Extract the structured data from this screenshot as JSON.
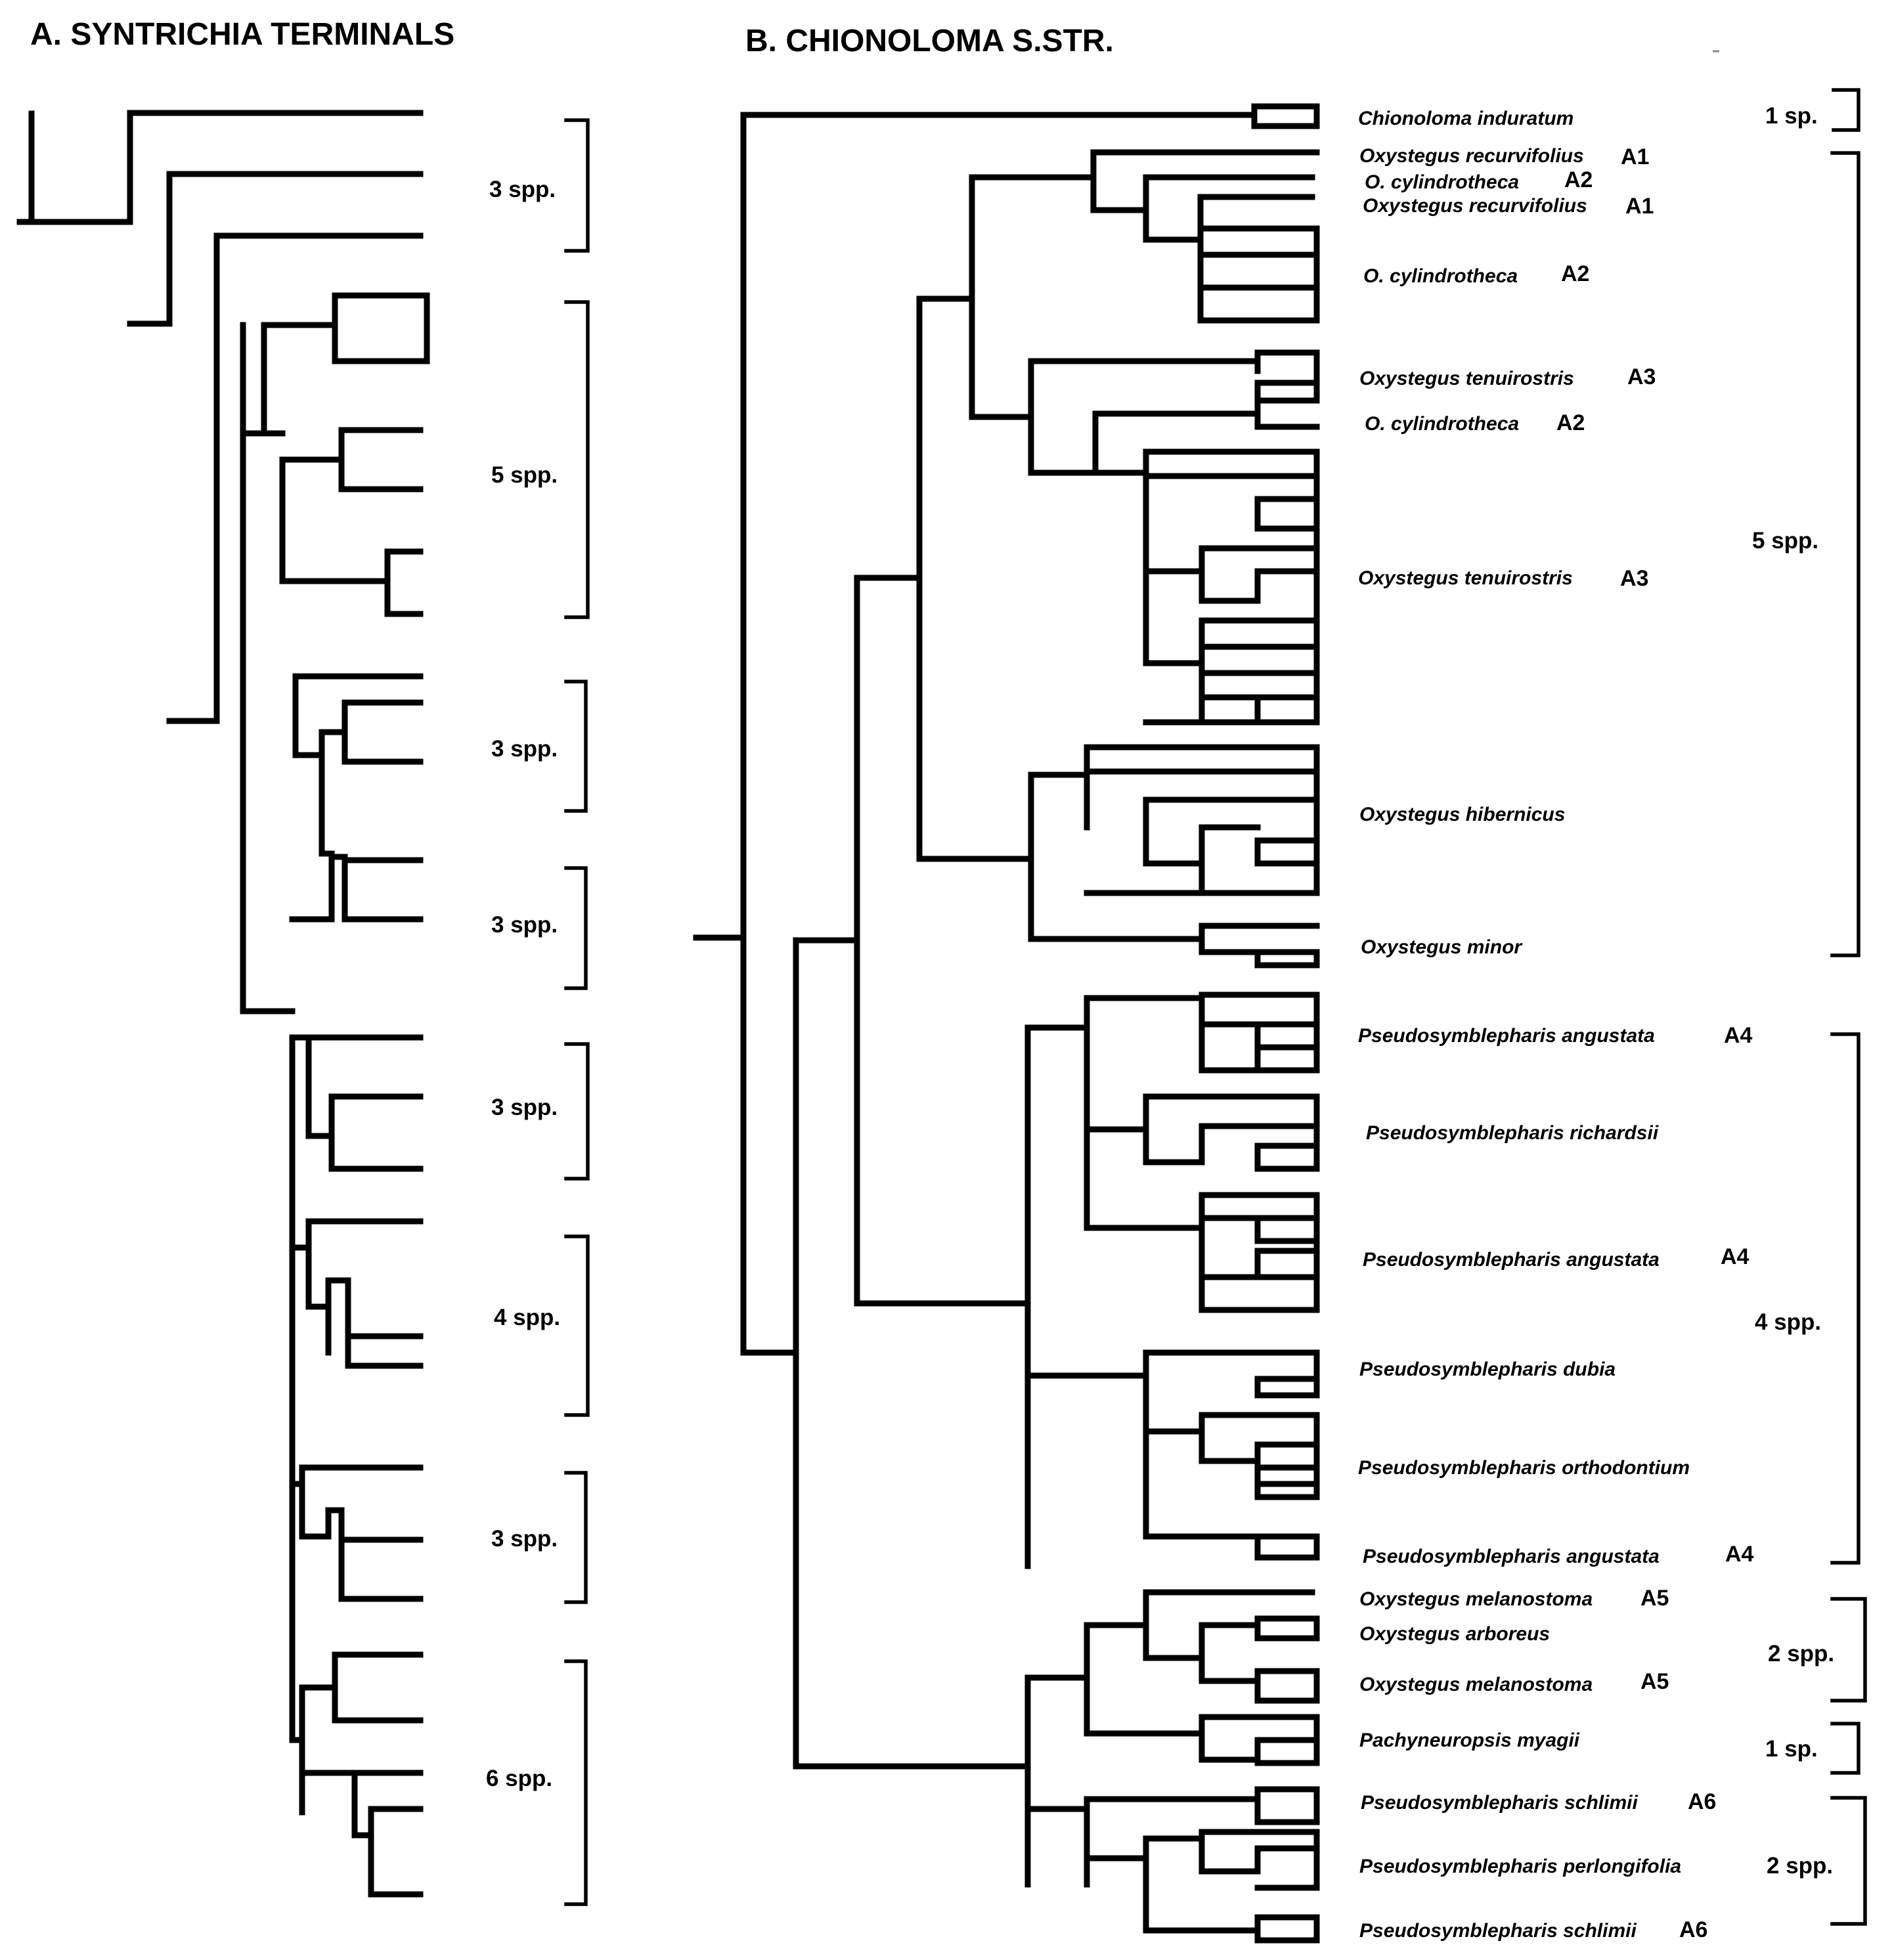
{
  "panel_a": {
    "title": "A. SYNTRICHIA TERMINALS",
    "groups": [
      "3 spp.",
      "5 spp.",
      "3 spp.",
      "3 spp.",
      "3 spp.",
      "4 spp.",
      "3 spp.",
      "6 spp."
    ]
  },
  "panel_b": {
    "title": "B. CHIONOLOMA S.STR.",
    "taxa": [
      {
        "name": "Chionoloma induratum",
        "code": ""
      },
      {
        "name": "Oxystegus recurvifolius",
        "code": "A1"
      },
      {
        "name": "O. cylindrotheca",
        "code": "A2"
      },
      {
        "name": "Oxystegus recurvifolius",
        "code": "A1"
      },
      {
        "name": "O. cylindrotheca",
        "code": "A2"
      },
      {
        "name": "Oxystegus tenuirostris",
        "code": "A3"
      },
      {
        "name": "O. cylindrotheca",
        "code": "A2"
      },
      {
        "name": "Oxystegus tenuirostris",
        "code": "A3"
      },
      {
        "name": "Oxystegus hibernicus",
        "code": ""
      },
      {
        "name": "Oxystegus minor",
        "code": ""
      },
      {
        "name": "Pseudosymblepharis angustata",
        "code": "A4"
      },
      {
        "name": "Pseudosymblepharis richardsii",
        "code": ""
      },
      {
        "name": "Pseudosymblepharis angustata",
        "code": "A4"
      },
      {
        "name": "Pseudosymblepharis dubia",
        "code": ""
      },
      {
        "name": "Pseudosymblepharis orthodontium",
        "code": ""
      },
      {
        "name": "Pseudosymblepharis angustata",
        "code": "A4"
      },
      {
        "name": "Oxystegus melanostoma",
        "code": "A5"
      },
      {
        "name": "Oxystegus arboreus",
        "code": ""
      },
      {
        "name": "Oxystegus melanostoma",
        "code": "A5"
      },
      {
        "name": "Pachyneuropsis myagii",
        "code": ""
      },
      {
        "name": "Pseudosymblepharis schlimii",
        "code": "A6"
      },
      {
        "name": "Pseudosymblepharis perlongifolia",
        "code": ""
      },
      {
        "name": "Pseudosymblepharis schlimii",
        "code": "A6"
      }
    ],
    "groups": [
      "1 sp.",
      "5 spp.",
      "4 spp.",
      "2 spp.",
      "1 sp.",
      "2 spp."
    ]
  }
}
